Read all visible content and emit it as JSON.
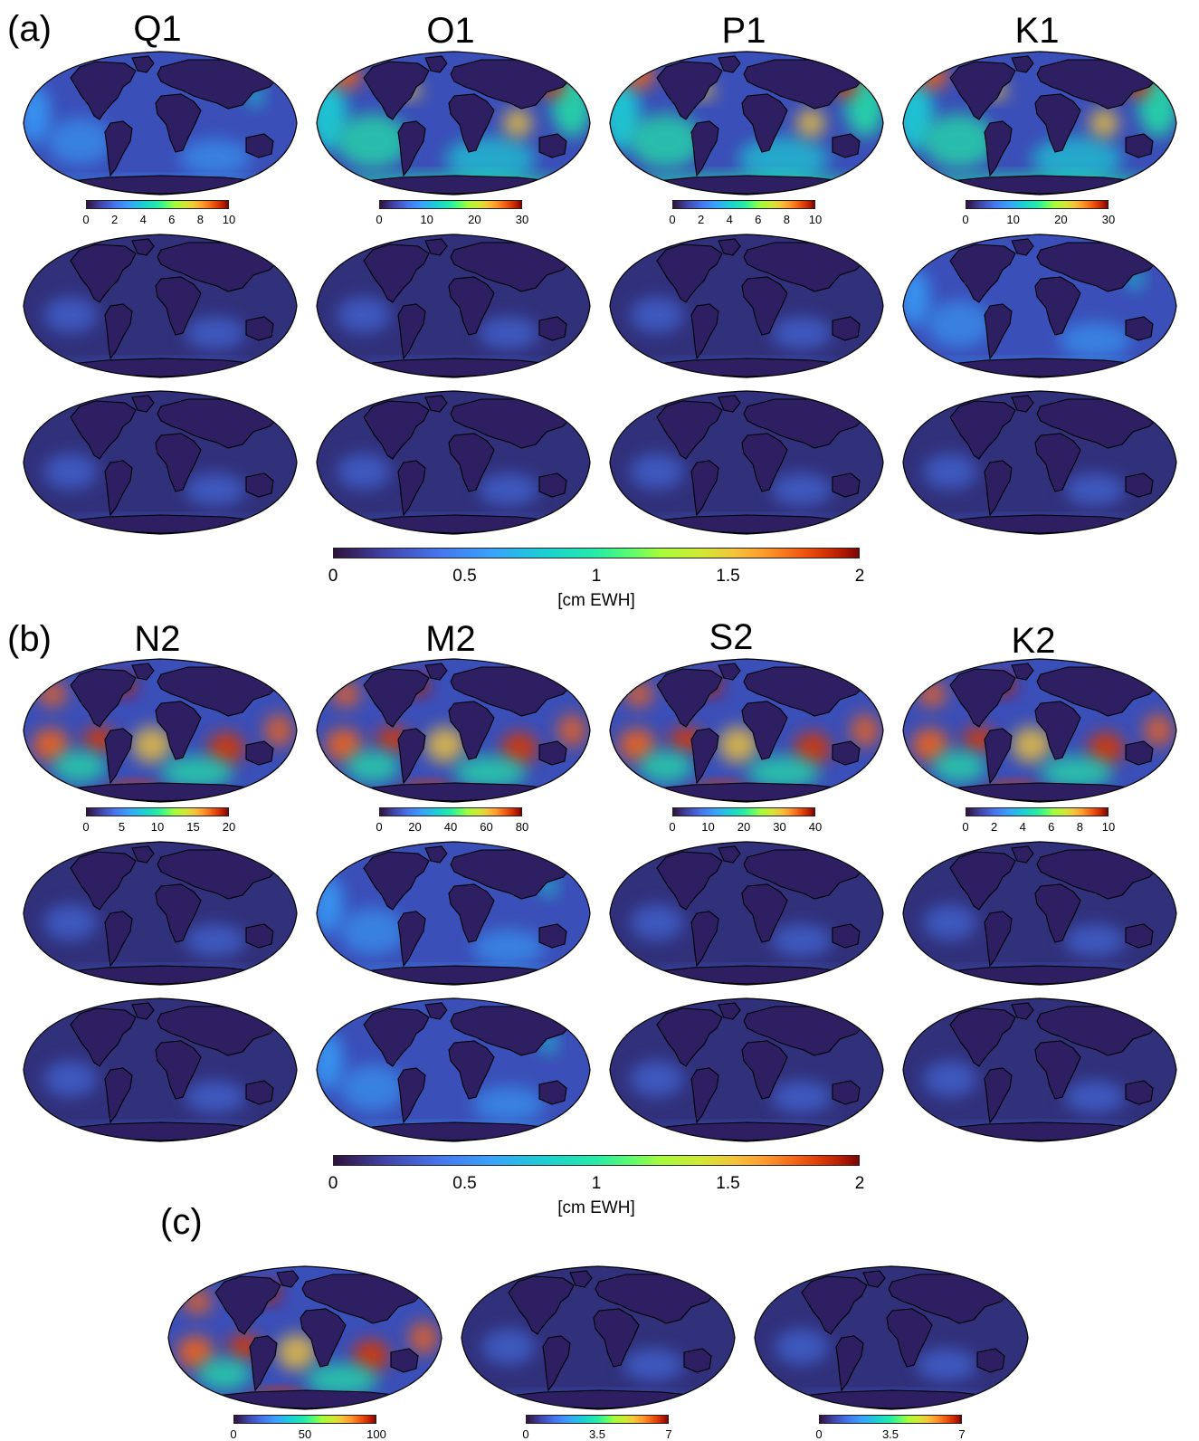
{
  "panel_labels": {
    "a": "(a)",
    "b": "(b)",
    "c": "(c)"
  },
  "section_a": {
    "constituents": [
      "Q1",
      "O1",
      "P1",
      "K1"
    ],
    "amplitude_colorbars": [
      {
        "ticks": [
          "0",
          "2",
          "4",
          "6",
          "8",
          "10"
        ]
      },
      {
        "ticks": [
          "0",
          "10",
          "20",
          "30"
        ]
      },
      {
        "ticks": [
          "0",
          "2",
          "4",
          "6",
          "8",
          "10"
        ]
      },
      {
        "ticks": [
          "0",
          "10",
          "20",
          "30"
        ]
      }
    ],
    "error_colorbar": {
      "ticks": [
        "0",
        "0.5",
        "1",
        "1.5",
        "2"
      ],
      "unit": "[cm EWH]"
    }
  },
  "section_b": {
    "constituents": [
      "N2",
      "M2",
      "S2",
      "K2"
    ],
    "amplitude_colorbars": [
      {
        "ticks": [
          "0",
          "5",
          "10",
          "15",
          "20"
        ]
      },
      {
        "ticks": [
          "0",
          "20",
          "40",
          "60",
          "80"
        ]
      },
      {
        "ticks": [
          "0",
          "10",
          "20",
          "30",
          "40"
        ]
      },
      {
        "ticks": [
          "0",
          "2",
          "4",
          "6",
          "8",
          "10"
        ]
      }
    ],
    "error_colorbar": {
      "ticks": [
        "0",
        "0.5",
        "1",
        "1.5",
        "2"
      ],
      "unit": "[cm EWH]"
    }
  },
  "section_c": {
    "colorbars": [
      {
        "ticks": [
          "0",
          "50",
          "100"
        ]
      },
      {
        "ticks": [
          "0",
          "3.5",
          "7"
        ]
      },
      {
        "ticks": [
          "0",
          "3.5",
          "7"
        ]
      }
    ]
  },
  "colormap": {
    "name": "turbo",
    "low": "#30123b",
    "mid": "#24eca6",
    "high": "#7a0402"
  },
  "map_projection": "Winkel-tripel-like global map with coastlines"
}
